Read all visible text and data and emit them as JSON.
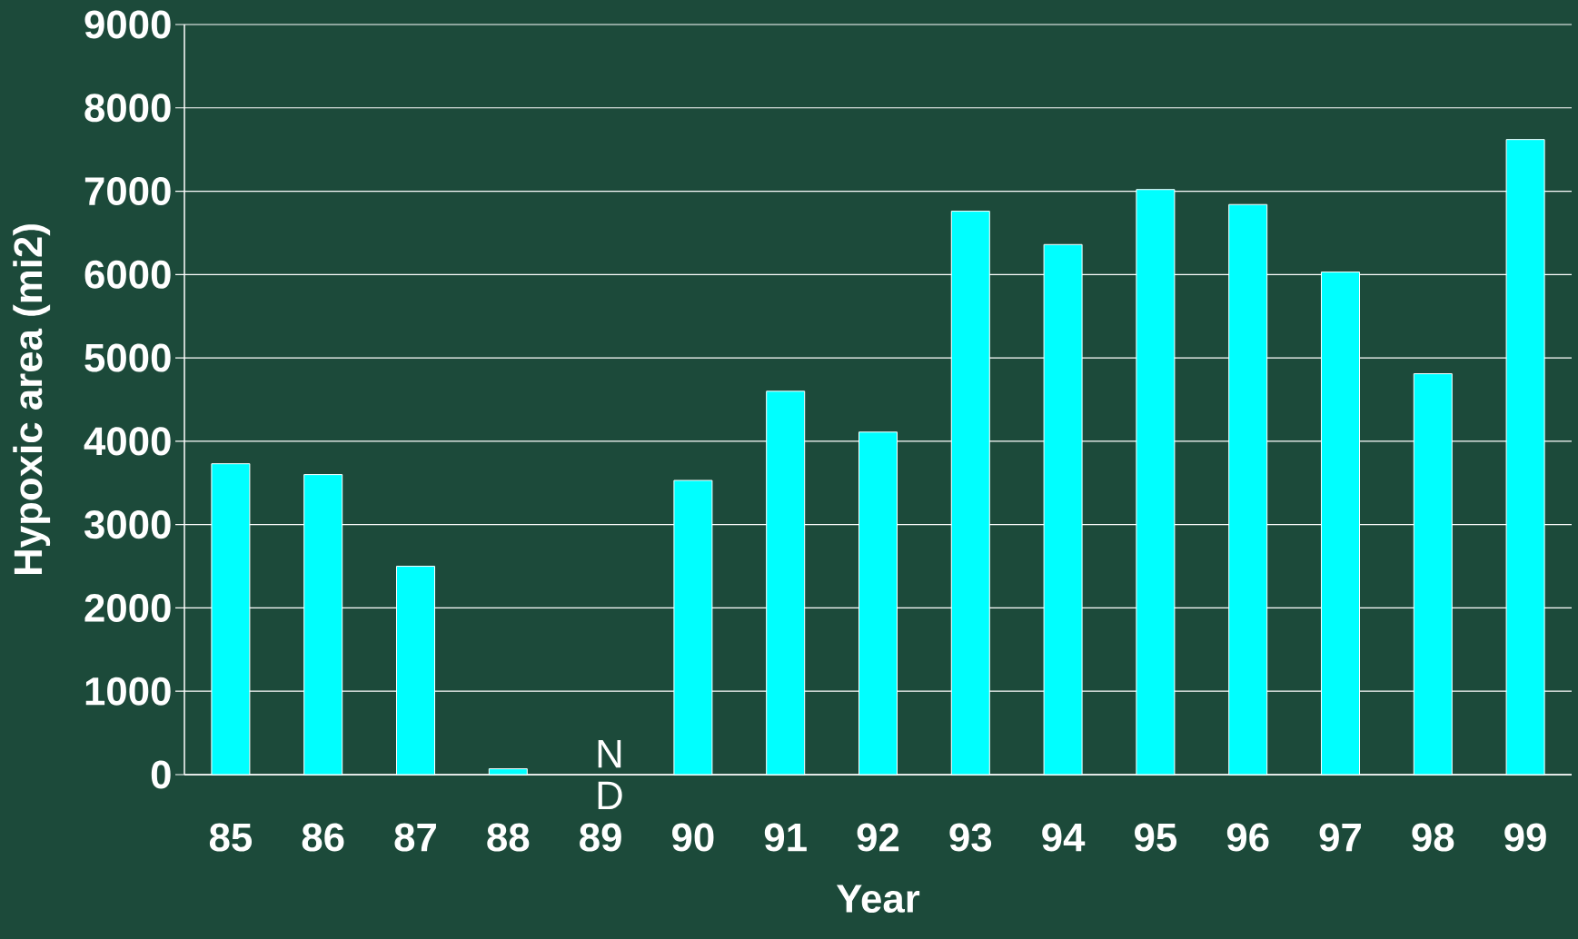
{
  "chart_data": {
    "type": "bar",
    "xlabel": "Year",
    "ylabel": "Hypoxic area (mi2)",
    "categories": [
      "85",
      "86",
      "87",
      "88",
      "89",
      "90",
      "91",
      "92",
      "93",
      "94",
      "95",
      "96",
      "97",
      "98",
      "99"
    ],
    "values": [
      3730,
      3600,
      2500,
      70,
      null,
      3530,
      4600,
      4110,
      6760,
      6360,
      7020,
      6840,
      6030,
      4810,
      7620
    ],
    "color": "#00ffff",
    "ylim": [
      0,
      9000
    ],
    "yticks": [
      0,
      1000,
      2000,
      3000,
      4000,
      5000,
      6000,
      7000,
      8000,
      9000
    ],
    "grid": "y",
    "annotations": [
      "N D"
    ]
  }
}
